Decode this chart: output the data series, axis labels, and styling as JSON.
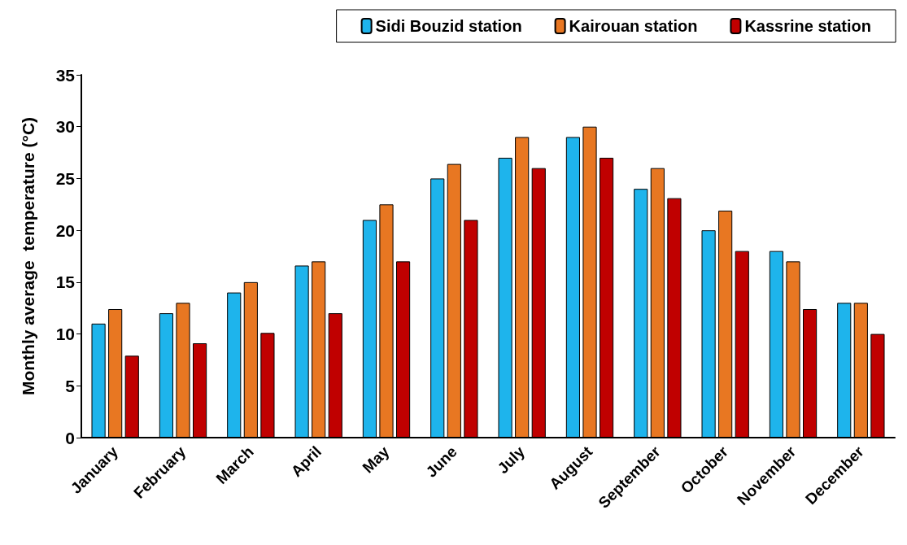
{
  "chart_data": {
    "type": "bar",
    "ylabel": "Monthly average  temperature (°C)",
    "categories": [
      "January",
      "February",
      "March",
      "April",
      "May",
      "June",
      "July",
      "August",
      "September",
      "October",
      "November",
      "December"
    ],
    "series": [
      {
        "name": "Sidi Bouzid station",
        "color": "#1eb4ec",
        "values": [
          11,
          12,
          14,
          16.6,
          21,
          25,
          27,
          29,
          24,
          20,
          18,
          13
        ]
      },
      {
        "name": "Kairouan station",
        "color": "#e87722",
        "values": [
          12.4,
          13,
          15,
          17,
          22.5,
          26.4,
          29,
          30,
          26,
          21.9,
          17,
          13
        ]
      },
      {
        "name": "Kassrine station",
        "color": "#c00000",
        "values": [
          7.9,
          9.1,
          10.1,
          12,
          17,
          21,
          26,
          27,
          23.1,
          18,
          12.4,
          10
        ]
      }
    ],
    "ylim": [
      0,
      35
    ],
    "yticks": [
      0,
      5,
      10,
      15,
      20,
      25,
      30,
      35
    ],
    "grid": false,
    "legend": "top right"
  }
}
